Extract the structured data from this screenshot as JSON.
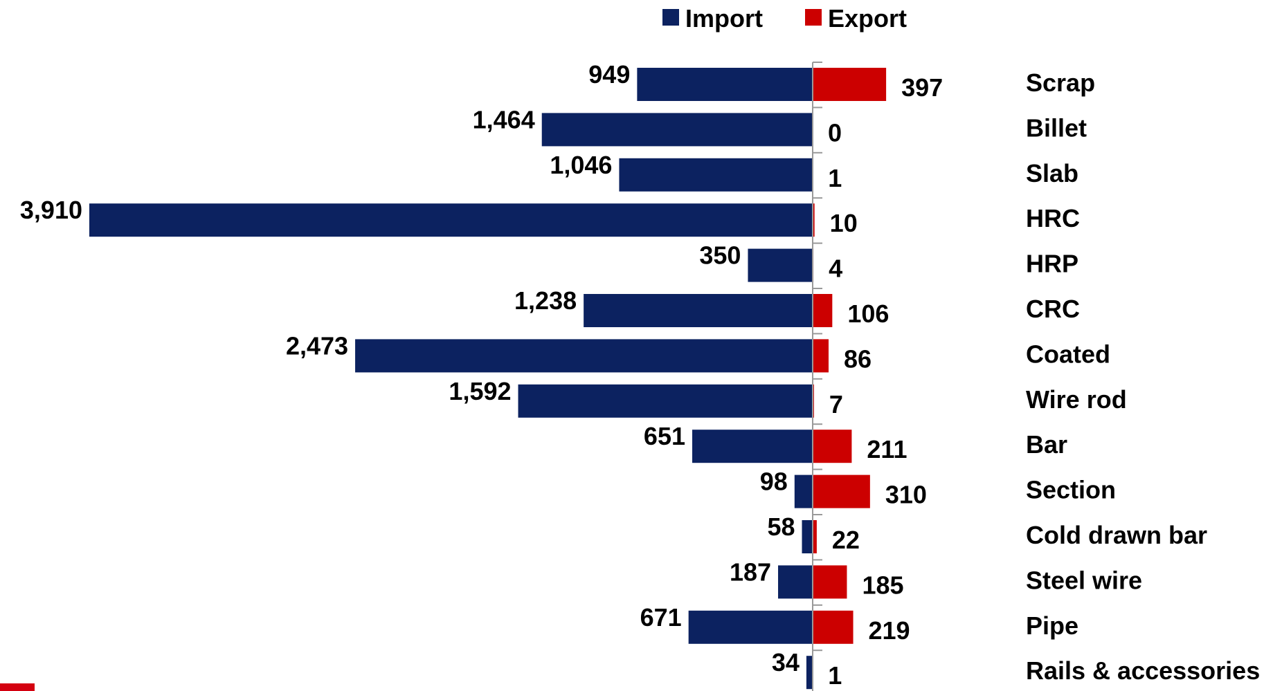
{
  "colors": {
    "import": "#0c2260",
    "export": "#cc0000",
    "axis": "#999999"
  },
  "chart_data": {
    "type": "bar",
    "orientation": "horizontal-diverging",
    "title": "",
    "xlabel": "",
    "ylabel": "",
    "legend_position": "top",
    "grid": false,
    "categories": [
      "Scrap",
      "Billet",
      "Slab",
      "HRC",
      "HRP",
      "CRC",
      "Coated",
      "Wire rod",
      "Bar",
      "Section",
      "Cold drawn bar",
      "Steel wire",
      "Pipe",
      "Rails & accessories"
    ],
    "series": [
      {
        "name": "Import",
        "direction": "left",
        "values": [
          949,
          1464,
          1046,
          3910,
          350,
          1238,
          2473,
          1592,
          651,
          98,
          58,
          187,
          671,
          34
        ],
        "labels": [
          "949",
          "1,464",
          "1,046",
          "3,910",
          "350",
          "1,238",
          "2,473",
          "1,592",
          "651",
          "98",
          "58",
          "187",
          "671",
          "34"
        ]
      },
      {
        "name": "Export",
        "direction": "right",
        "values": [
          397,
          0,
          1,
          10,
          4,
          106,
          86,
          7,
          211,
          310,
          22,
          185,
          219,
          1
        ],
        "labels": [
          "397",
          "0",
          "1",
          "10",
          "4",
          "106",
          "86",
          "7",
          "211",
          "310",
          "22",
          "185",
          "219",
          "1"
        ]
      }
    ]
  }
}
